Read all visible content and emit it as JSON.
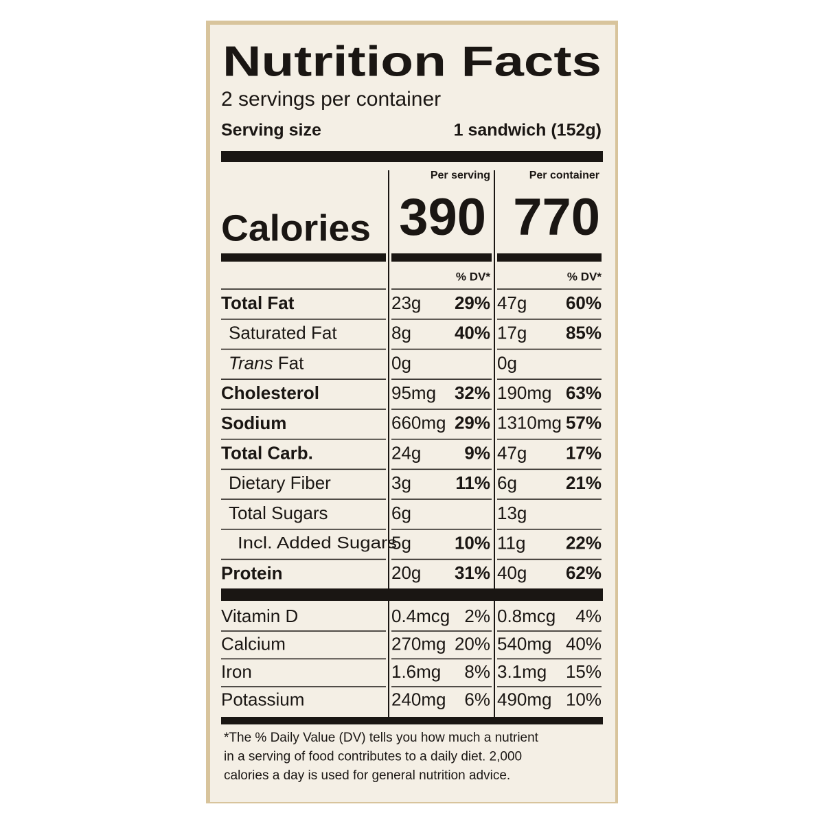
{
  "title": "Nutrition Facts",
  "servings": "2 servings per container",
  "serving_size": {
    "label": "Serving size",
    "value": "1 sandwich (152g)"
  },
  "columns": [
    "Per serving",
    "Per container"
  ],
  "calories": {
    "label": "Calories",
    "values": [
      "390",
      "770"
    ]
  },
  "dv_header": [
    "% DV*",
    "% DV*"
  ],
  "nutrients": [
    {
      "name": "Total Fat",
      "serving": {
        "amount": "23g",
        "dv": "29%"
      },
      "container": {
        "amount": "47g",
        "dv": "60%"
      },
      "sub": [
        {
          "name": "Saturated Fat",
          "serving": {
            "amount": "8g",
            "dv": "40%"
          },
          "container": {
            "amount": "17g",
            "dv": "85%"
          }
        },
        {
          "italic": "Trans",
          "name": "Fat",
          "serving": {
            "amount": "0g"
          },
          "container": {
            "amount": "0g"
          }
        }
      ]
    },
    {
      "name": "Cholesterol",
      "serving": {
        "amount": "95mg",
        "dv": "32%"
      },
      "container": {
        "amount": "190mg",
        "dv": "63%"
      }
    },
    {
      "name": "Sodium",
      "serving": {
        "amount": "660mg",
        "dv": "29%"
      },
      "container": {
        "amount": "1310mg",
        "dv": "57%"
      }
    },
    {
      "name": "Total Carb.",
      "serving": {
        "amount": "24g",
        "dv": "9%"
      },
      "container": {
        "amount": "47g",
        "dv": "17%"
      },
      "sub": [
        {
          "name": "Dietary Fiber",
          "serving": {
            "amount": "3g",
            "dv": "11%"
          },
          "container": {
            "amount": "6g",
            "dv": "21%"
          }
        },
        {
          "name": "Total Sugars",
          "serving": {
            "amount": "6g"
          },
          "container": {
            "amount": "13g"
          },
          "sub": [
            {
              "name": "Incl. Added Sugars",
              "serving": {
                "amount": "5g",
                "dv": "10%"
              },
              "container": {
                "amount": "11g",
                "dv": "22%"
              }
            }
          ]
        }
      ]
    },
    {
      "name": "Protein",
      "serving": {
        "amount": "20g",
        "dv": "31%"
      },
      "container": {
        "amount": "40g",
        "dv": "62%"
      }
    }
  ],
  "vitamins": [
    {
      "name": "Vitamin D",
      "serving": {
        "amount": "0.4mcg",
        "dv": "2%"
      },
      "container": {
        "amount": "0.8mcg",
        "dv": "4%"
      }
    },
    {
      "name": "Calcium",
      "serving": {
        "amount": "270mg",
        "dv": "20%"
      },
      "container": {
        "amount": "540mg",
        "dv": "40%"
      }
    },
    {
      "name": "Iron",
      "serving": {
        "amount": "1.6mg",
        "dv": "8%"
      },
      "container": {
        "amount": "3.1mg",
        "dv": "15%"
      }
    },
    {
      "name": "Potassium",
      "serving": {
        "amount": "240mg",
        "dv": "6%"
      },
      "container": {
        "amount": "490mg",
        "dv": "10%"
      }
    }
  ],
  "footnote": [
    "*The % Daily Value (DV) tells you how much a nutrient",
    "in a serving of food contributes to a daily diet. 2,000",
    "calories a day is used for general nutrition advice."
  ]
}
